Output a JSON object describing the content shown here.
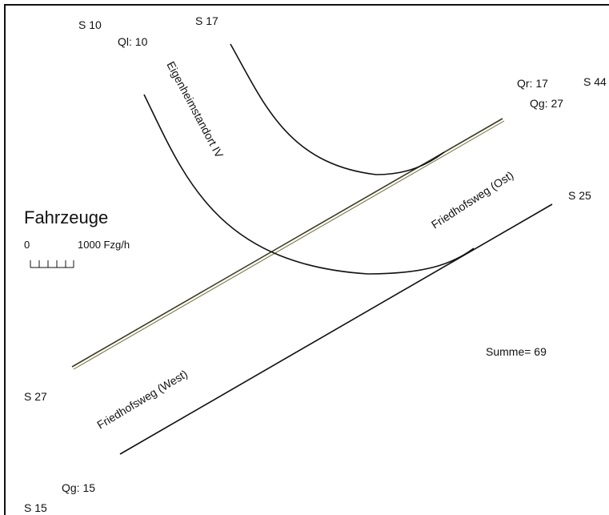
{
  "nodes": {
    "s10": "S 10",
    "ql": "Ql: 10",
    "s17": "S 17",
    "qr": "Qr: 17",
    "s44": "S 44",
    "qg_top": "Qg: 27",
    "s25": "S 25",
    "s27": "S 27",
    "qg_bottom": "Qg: 15",
    "s15": "S 15"
  },
  "roads": {
    "eigenheim": "Eigenheimstandort IV",
    "ost": "Friedhofsweg (Ost)",
    "west": "Friedhofsweg (West)"
  },
  "legend": {
    "title": "Fahrzeuge",
    "scale_start": "0",
    "scale_end": "1000 Fzg/h"
  },
  "summary": "Summe= 69"
}
